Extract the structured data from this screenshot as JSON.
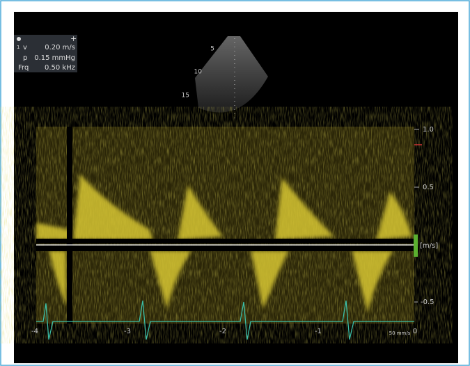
{
  "info_panel": {
    "index": "1",
    "rows": [
      {
        "label": "v",
        "value": "0.20 m/s"
      },
      {
        "label": "p",
        "value": "0.15 mmHg"
      },
      {
        "label": "Frq",
        "value": "0.50 kHz"
      }
    ]
  },
  "depth_labels": [
    "5",
    "10",
    "15"
  ],
  "velocity_axis": {
    "labels": [
      "1.0",
      "0.5",
      "[m/s]",
      "-0.5"
    ]
  },
  "time_axis": {
    "labels": [
      "-4",
      "-3",
      "-2",
      "-1",
      "0"
    ]
  },
  "sweep_speed": "50 mm/s"
}
